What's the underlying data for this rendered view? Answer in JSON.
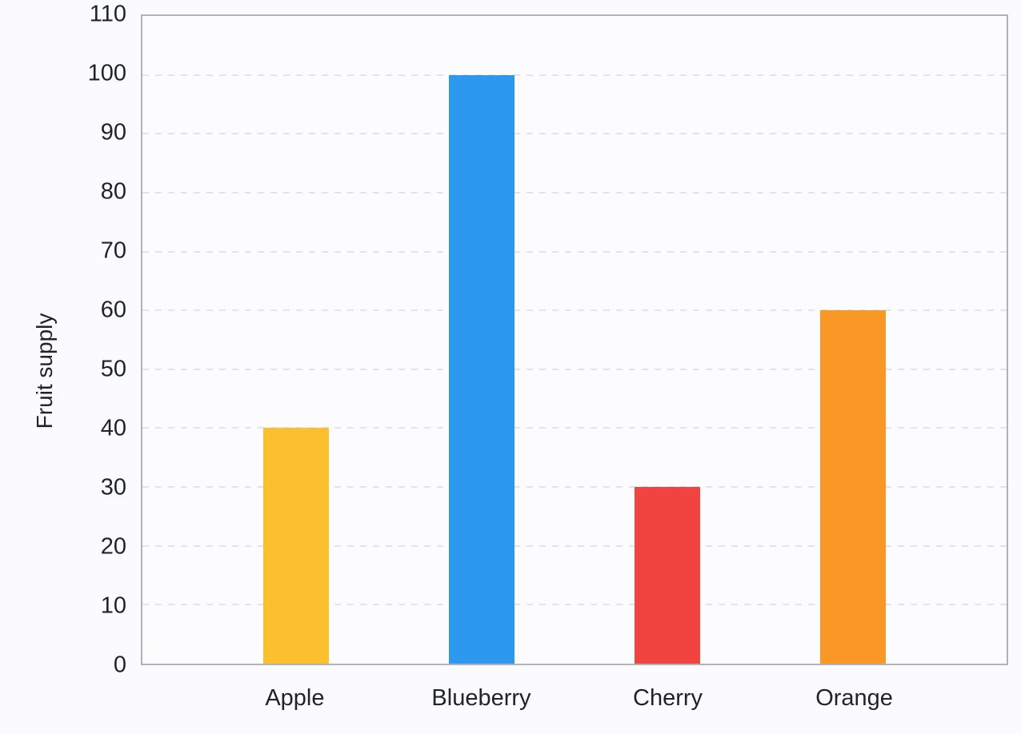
{
  "figure": {
    "background_color": "#fbfbfe",
    "axis_border_color": "#b1b1b9",
    "gridline_color": "#e3e3e8",
    "text_color": "#1f232b"
  },
  "chart_data": {
    "type": "bar",
    "title": "",
    "categories": [
      "Apple",
      "Blueberry",
      "Cherry",
      "Orange"
    ],
    "values": [
      40,
      100,
      30,
      60
    ],
    "bar_colors": [
      "#fcbf2d",
      "#2d99ee",
      "#f1433f",
      "#f99727"
    ],
    "xlabel": "",
    "ylabel": "Fruit supply",
    "ylim": [
      0,
      110
    ],
    "ytick_step": 10,
    "yticks": [
      0,
      10,
      20,
      30,
      40,
      50,
      60,
      70,
      80,
      90,
      100,
      110
    ],
    "grid": "horizontal-dashed",
    "legend_position": "none"
  }
}
